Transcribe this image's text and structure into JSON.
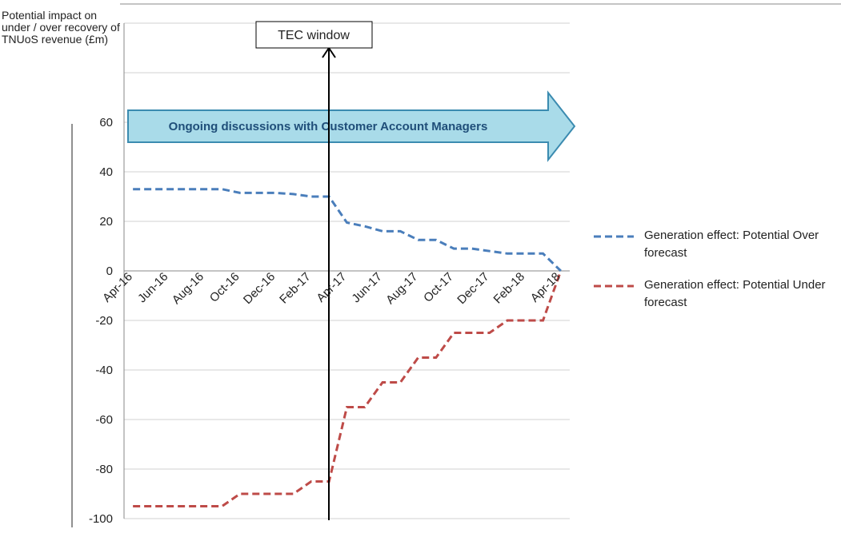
{
  "chart_data": {
    "type": "line",
    "y_axis_label": "Potential impact on under / over recovery of TNUoS revenue (£m)",
    "annotations": {
      "arrow": "Ongoing discussions with Customer Account Managers",
      "marker": "TEC window"
    },
    "categories": [
      "Apr-16",
      null,
      "Jun-16",
      null,
      "Aug-16",
      null,
      "Oct-16",
      null,
      "Dec-16",
      null,
      "Feb-17",
      null,
      "Apr-17",
      null,
      "Jun-17",
      null,
      "Aug-17",
      null,
      "Oct-17",
      null,
      "Dec-17",
      null,
      "Feb-18",
      null,
      "Apr-18"
    ],
    "series": [
      {
        "name": "Generation effect: Potential Over forecast",
        "color": "#4a7ebb",
        "values": [
          33,
          33,
          33,
          33,
          33,
          33,
          31.5,
          31.5,
          31.5,
          31,
          30,
          30,
          19.5,
          18,
          16,
          16,
          12.5,
          12.5,
          9,
          9,
          8,
          7,
          7,
          7,
          0
        ]
      },
      {
        "name": "Generation effect: Potential Under forecast",
        "color": "#be4b48",
        "values": [
          -95,
          -95,
          -95,
          -95,
          -95,
          -95,
          -90,
          -90,
          -90,
          -90,
          -85,
          -85,
          -55,
          -55,
          -45,
          -45,
          -35,
          -35,
          -25,
          -25,
          -25,
          -20,
          -20,
          -20,
          0
        ]
      }
    ],
    "ylim": [
      -100,
      100
    ],
    "yticks": [
      -100,
      -80,
      -60,
      -40,
      -20,
      0,
      20,
      40,
      60
    ],
    "grid": true,
    "legend": "right"
  }
}
